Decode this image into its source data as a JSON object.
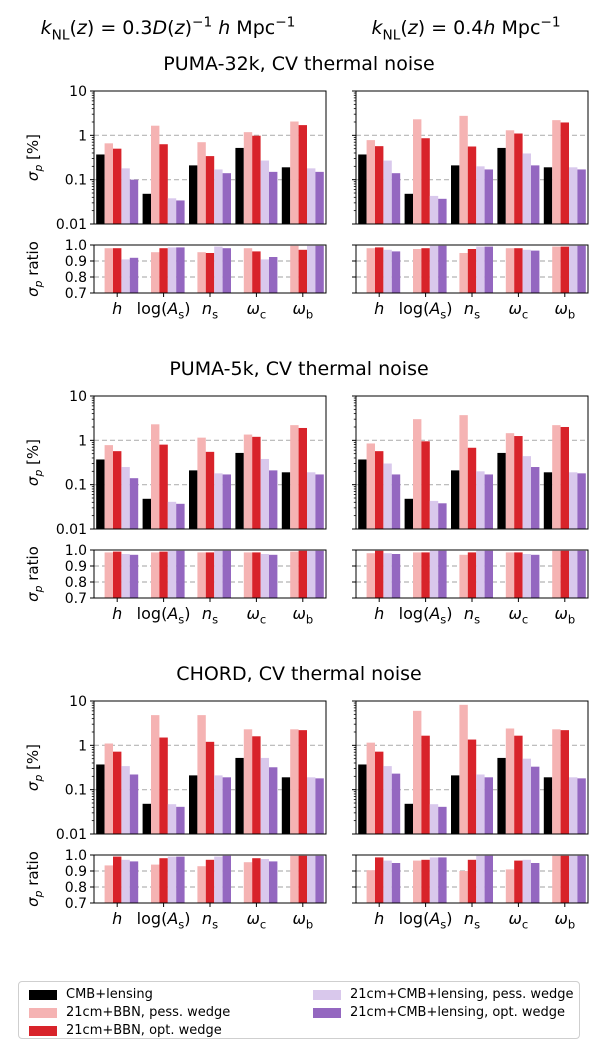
{
  "header": {
    "left": "k_NL(z) = 0.3D(z)^−1 h Mpc^−1",
    "right": "k_NL(z) = 0.4h Mpc^−1"
  },
  "colors": {
    "cmb": "#000000",
    "bbn_pess": "#f5b3b3",
    "bbn_opt": "#d8232a",
    "cmbl_pess": "#d9c8ec",
    "cmbl_opt": "#9467c0"
  },
  "legend": [
    {
      "key": "cmb",
      "label": "CMB+lensing"
    },
    {
      "key": "bbn_pess",
      "label": "21cm+BBN, pess. wedge"
    },
    {
      "key": "bbn_opt",
      "label": "21cm+BBN, opt. wedge"
    },
    {
      "key": "cmbl_pess",
      "label": "21cm+CMB+lensing, pess. wedge"
    },
    {
      "key": "cmbl_opt",
      "label": "21cm+CMB+lensing, opt. wedge"
    }
  ],
  "chart_data": {
    "type": "bar",
    "categories": [
      "h",
      "log(A_s)",
      "n_s",
      "ω_c",
      "ω_b"
    ],
    "sigma_axis": {
      "label": "σ_p [%]",
      "scale": "log",
      "ylim": [
        0.01,
        10
      ],
      "ticks": [
        "0.01",
        "0.1",
        "1",
        "10"
      ],
      "ref_lines": [
        0.1,
        1
      ]
    },
    "ratio_axis": {
      "label": "σ_p ratio",
      "ylim": [
        0.7,
        1.0
      ],
      "ticks": [
        "0.7",
        "0.8",
        "0.9",
        "1.0"
      ],
      "ref_lines": [
        0.8,
        0.9
      ]
    },
    "series_names": [
      "CMB+lensing",
      "21cm+BBN, pess. wedge",
      "21cm+BBN, opt. wedge",
      "21cm+CMB+lensing, pess. wedge",
      "21cm+CMB+lensing, opt. wedge"
    ],
    "experiments": [
      {
        "title": "PUMA-32k, CV thermal noise",
        "panels": [
          {
            "sigma": {
              "cmb": [
                0.37,
                0.048,
                0.21,
                0.52,
                0.19
              ],
              "bbn_pess": [
                0.66,
                1.65,
                0.7,
                1.18,
                2.05
              ],
              "bbn_opt": [
                0.5,
                0.63,
                0.34,
                0.98,
                1.7
              ],
              "cmbl_pess": [
                0.18,
                0.038,
                0.17,
                0.27,
                0.18
              ],
              "cmbl_opt": [
                0.1,
                0.034,
                0.14,
                0.15,
                0.15
              ]
            },
            "ratio": {
              "bbn_pess": [
                0.98,
                0.955,
                0.955,
                0.98,
                0.995
              ],
              "bbn_opt": [
                0.98,
                0.98,
                0.95,
                0.96,
                0.97
              ],
              "cmbl_pess": [
                0.91,
                0.985,
                0.99,
                0.91,
                0.995
              ],
              "cmbl_opt": [
                0.92,
                0.985,
                0.98,
                0.925,
                0.995
              ]
            }
          },
          {
            "sigma": {
              "cmb": [
                0.37,
                0.048,
                0.21,
                0.52,
                0.19
              ],
              "bbn_pess": [
                0.78,
                2.3,
                2.75,
                1.3,
                2.2
              ],
              "bbn_opt": [
                0.57,
                0.86,
                0.56,
                1.1,
                1.95
              ],
              "cmbl_pess": [
                0.27,
                0.043,
                0.2,
                0.39,
                0.19
              ],
              "cmbl_opt": [
                0.14,
                0.037,
                0.17,
                0.21,
                0.17
              ]
            },
            "ratio": {
              "bbn_pess": [
                0.98,
                0.975,
                0.95,
                0.98,
                0.99
              ],
              "bbn_opt": [
                0.985,
                0.98,
                0.975,
                0.98,
                0.99
              ],
              "cmbl_pess": [
                0.97,
                0.995,
                0.99,
                0.97,
                0.995
              ],
              "cmbl_opt": [
                0.96,
                0.995,
                0.99,
                0.965,
                0.995
              ]
            }
          }
        ]
      },
      {
        "title": "PUMA-5k, CV thermal noise",
        "panels": [
          {
            "sigma": {
              "cmb": [
                0.37,
                0.048,
                0.21,
                0.52,
                0.19
              ],
              "bbn_pess": [
                0.78,
                2.3,
                1.15,
                1.35,
                2.2
              ],
              "bbn_opt": [
                0.57,
                0.8,
                0.55,
                1.2,
                1.9
              ],
              "cmbl_pess": [
                0.25,
                0.041,
                0.18,
                0.38,
                0.19
              ],
              "cmbl_opt": [
                0.14,
                0.037,
                0.17,
                0.21,
                0.17
              ]
            },
            "ratio": {
              "bbn_pess": [
                0.985,
                0.985,
                0.985,
                0.985,
                0.99
              ],
              "bbn_opt": [
                0.99,
                0.99,
                0.985,
                0.985,
                0.995
              ],
              "cmbl_pess": [
                0.975,
                0.995,
                0.995,
                0.975,
                0.995
              ],
              "cmbl_opt": [
                0.97,
                0.995,
                0.995,
                0.97,
                0.995
              ]
            }
          },
          {
            "sigma": {
              "cmb": [
                0.37,
                0.048,
                0.21,
                0.52,
                0.19
              ],
              "bbn_pess": [
                0.85,
                3.0,
                3.7,
                1.45,
                2.2
              ],
              "bbn_opt": [
                0.57,
                0.95,
                0.68,
                1.25,
                2.0
              ],
              "cmbl_pess": [
                0.3,
                0.043,
                0.2,
                0.44,
                0.19
              ],
              "cmbl_opt": [
                0.17,
                0.038,
                0.17,
                0.25,
                0.18
              ]
            },
            "ratio": {
              "bbn_pess": [
                0.98,
                0.985,
                0.97,
                0.985,
                0.995
              ],
              "bbn_opt": [
                0.995,
                0.985,
                0.985,
                0.985,
                0.995
              ],
              "cmbl_pess": [
                0.98,
                0.995,
                0.995,
                0.975,
                0.995
              ],
              "cmbl_opt": [
                0.975,
                0.995,
                0.995,
                0.97,
                0.995
              ]
            }
          }
        ]
      },
      {
        "title": "CHORD, CV thermal noise",
        "panels": [
          {
            "sigma": {
              "cmb": [
                0.37,
                0.048,
                0.21,
                0.52,
                0.19
              ],
              "bbn_pess": [
                1.1,
                4.8,
                4.8,
                2.3,
                2.3
              ],
              "bbn_opt": [
                0.72,
                1.5,
                1.2,
                1.6,
                2.2
              ],
              "cmbl_pess": [
                0.34,
                0.047,
                0.21,
                0.52,
                0.19
              ],
              "cmbl_opt": [
                0.22,
                0.041,
                0.19,
                0.32,
                0.18
              ]
            },
            "ratio": {
              "bbn_pess": [
                0.935,
                0.94,
                0.93,
                0.955,
                0.995
              ],
              "bbn_opt": [
                0.99,
                0.98,
                0.97,
                0.98,
                0.995
              ],
              "cmbl_pess": [
                0.97,
                0.99,
                0.99,
                0.975,
                0.995
              ],
              "cmbl_opt": [
                0.96,
                0.99,
                0.995,
                0.96,
                0.995
              ]
            }
          },
          {
            "sigma": {
              "cmb": [
                0.37,
                0.048,
                0.21,
                0.52,
                0.19
              ],
              "bbn_pess": [
                1.15,
                6.0,
                8.2,
                2.4,
                2.3
              ],
              "bbn_opt": [
                0.72,
                1.65,
                1.35,
                1.65,
                2.2
              ],
              "cmbl_pess": [
                0.34,
                0.047,
                0.22,
                0.5,
                0.19
              ],
              "cmbl_opt": [
                0.23,
                0.041,
                0.19,
                0.33,
                0.18
              ]
            },
            "ratio": {
              "bbn_pess": [
                0.905,
                0.965,
                0.9,
                0.91,
                0.995
              ],
              "bbn_opt": [
                0.985,
                0.97,
                0.97,
                0.965,
                0.995
              ],
              "cmbl_pess": [
                0.965,
                0.985,
                0.995,
                0.97,
                0.995
              ],
              "cmbl_opt": [
                0.95,
                0.985,
                0.995,
                0.95,
                0.995
              ]
            }
          }
        ]
      }
    ]
  }
}
